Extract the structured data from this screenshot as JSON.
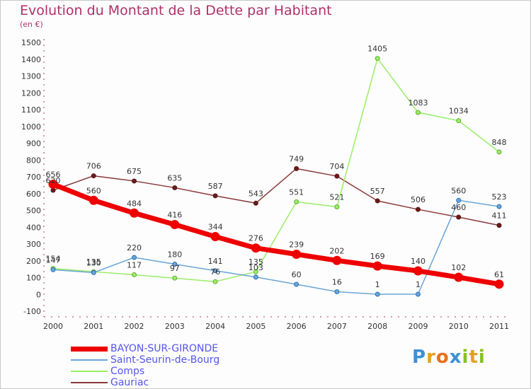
{
  "header": {
    "title": "Evolution du Montant de la Dette par Habitant",
    "unit": "(en €)"
  },
  "brand": {
    "text": "Proxiti"
  },
  "chart_data": {
    "type": "line",
    "title": "Evolution du Montant de la Dette par Habitant",
    "subtitle": "(en €)",
    "x": [
      "2000",
      "2001",
      "2002",
      "2003",
      "2004",
      "2005",
      "2006",
      "2007",
      "2008",
      "2009",
      "2010",
      "2011"
    ],
    "ylim": [
      -100,
      1500
    ],
    "yticks": [
      -100,
      0,
      100,
      200,
      300,
      400,
      500,
      600,
      700,
      800,
      900,
      1000,
      1100,
      1200,
      1300,
      1400,
      1500
    ],
    "grid": false,
    "legend_position": "bottom-left",
    "series": [
      {
        "name": "BAYON-SUR-GIRONDE",
        "color": "#ee0000",
        "width": 7,
        "values": [
          656,
          560,
          484,
          416,
          344,
          276,
          239,
          202,
          169,
          140,
          102,
          61
        ],
        "labels": [
          "656",
          "560",
          "484",
          "416",
          "344",
          "276",
          "239",
          "202",
          "169",
          "140",
          "102",
          "61"
        ]
      },
      {
        "name": "Saint-Seurin-de-Bourg",
        "color": "#6aa6d6",
        "width": 1.5,
        "values": [
          147,
          130,
          220,
          180,
          141,
          103,
          60,
          16,
          1,
          1,
          560,
          523
        ],
        "labels": [
          "147",
          "130",
          "220",
          "180",
          "141",
          "103",
          "60",
          "16",
          "1",
          "1",
          "560",
          "523"
        ]
      },
      {
        "name": "Comps",
        "color": "#99ee66",
        "width": 1.5,
        "values": [
          154,
          135,
          117,
          97,
          76,
          135,
          551,
          521,
          1405,
          1083,
          1034,
          848
        ],
        "labels": [
          "154",
          "135",
          "117",
          "97",
          "76",
          "135",
          "551",
          "521",
          "1405",
          "1083",
          "1034",
          "848"
        ]
      },
      {
        "name": "Gauriac",
        "color": "#8a3a3a",
        "width": 1.5,
        "values": [
          620,
          706,
          675,
          635,
          587,
          543,
          749,
          704,
          557,
          506,
          460,
          411
        ],
        "labels": [
          "620",
          "706",
          "675",
          "635",
          "587",
          "543",
          "749",
          "704",
          "557",
          "506",
          "460",
          "411"
        ]
      }
    ]
  }
}
